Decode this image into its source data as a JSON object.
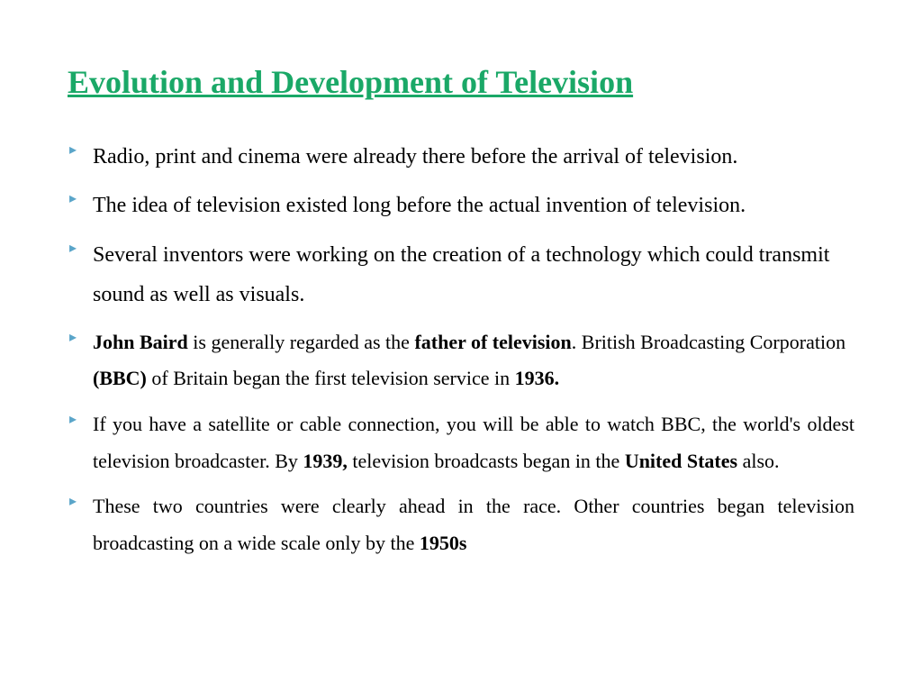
{
  "title_color": "#1aa867",
  "bullet_marker_color": "#5aa5c9",
  "text_color": "#000000",
  "background_color": "#ffffff",
  "title": "Evolution and Development of Television",
  "bullets": [
    {
      "segments": [
        {
          "text": "Radio, print and cinema were already there before the arrival of television.",
          "bold": false
        }
      ],
      "size": "a",
      "justify": false
    },
    {
      "segments": [
        {
          "text": "The idea of television existed long before the actual invention of television.",
          "bold": false
        }
      ],
      "size": "a",
      "justify": false
    },
    {
      "segments": [
        {
          "text": "Several inventors were working on the creation of a technology which could transmit sound as well as visuals.",
          "bold": false
        }
      ],
      "size": "a",
      "justify": false
    },
    {
      "segments": [
        {
          "text": "John Baird",
          "bold": true
        },
        {
          "text": " is generally regarded as the ",
          "bold": false
        },
        {
          "text": "father of television",
          "bold": true
        },
        {
          "text": ". British Broadcasting Corporation ",
          "bold": false
        },
        {
          "text": "(BBC)",
          "bold": true
        },
        {
          "text": " of Britain began the first television service in ",
          "bold": false
        },
        {
          "text": "1936.",
          "bold": true
        }
      ],
      "size": "b",
      "justify": false
    },
    {
      "segments": [
        {
          "text": "If you have a satellite or cable connection, you will be able to watch BBC, the world's oldest television broadcaster. By ",
          "bold": false
        },
        {
          "text": "1939,",
          "bold": true
        },
        {
          "text": " television broadcasts began in the ",
          "bold": false
        },
        {
          "text": "United States",
          "bold": true
        },
        {
          "text": " also.",
          "bold": false
        }
      ],
      "size": "b",
      "justify": true
    },
    {
      "segments": [
        {
          "text": "These two countries were clearly ahead in the race. Other countries began television broadcasting on a wide scale only by the ",
          "bold": false
        },
        {
          "text": "1950s",
          "bold": true
        }
      ],
      "size": "b",
      "justify": true
    }
  ]
}
